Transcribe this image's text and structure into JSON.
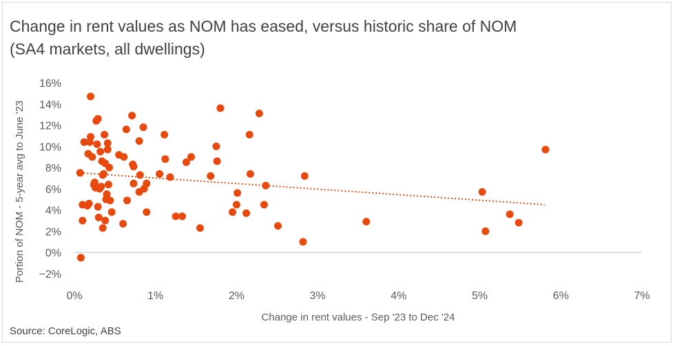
{
  "title": "Change in rent values as NOM has eased, versus historic share of NOM (SA4 markets, all dwellings)",
  "source": "Source: CoreLogic, ABS",
  "colors": {
    "points": "#e8490f",
    "trendline": "#e8490f",
    "axis": "#bfbfbf",
    "text": "#404040"
  },
  "chart_data": {
    "type": "scatter",
    "title": "Change in rent values as NOM has eased, versus historic share of NOM (SA4 markets, all dwellings)",
    "xlabel": "Change in rent values - Sep '23 to Dec '24",
    "ylabel": "Portion of NOM -  5-year avg to June '23",
    "xlim": [
      0,
      7
    ],
    "ylim": [
      -2,
      16
    ],
    "x_ticks": [
      0,
      1,
      2,
      3,
      4,
      5,
      6,
      7
    ],
    "y_ticks": [
      -2,
      0,
      2,
      4,
      6,
      8,
      10,
      12,
      14,
      16
    ],
    "x_tick_labels": [
      "0%",
      "1%",
      "2%",
      "3%",
      "4%",
      "5%",
      "6%",
      "7%"
    ],
    "y_tick_labels": [
      "−2%",
      "0%",
      "2%",
      "4%",
      "6%",
      "8%",
      "10%",
      "12%",
      "14%",
      "16%"
    ],
    "grid": false,
    "trendline": {
      "type": "linear",
      "x_range": [
        0.07,
        5.8
      ],
      "y_start": 7.5,
      "y_end": 4.5
    },
    "points": [
      [
        0.07,
        7.5
      ],
      [
        0.08,
        -0.5
      ],
      [
        0.1,
        4.5
      ],
      [
        0.1,
        3.0
      ],
      [
        0.12,
        10.4
      ],
      [
        0.16,
        4.4
      ],
      [
        0.17,
        9.3
      ],
      [
        0.18,
        4.6
      ],
      [
        0.19,
        10.4
      ],
      [
        0.2,
        14.7
      ],
      [
        0.2,
        10.9
      ],
      [
        0.22,
        9.0
      ],
      [
        0.24,
        6.4
      ],
      [
        0.25,
        6.6
      ],
      [
        0.26,
        6.1
      ],
      [
        0.27,
        12.4
      ],
      [
        0.28,
        10.2
      ],
      [
        0.29,
        12.6
      ],
      [
        0.29,
        4.3
      ],
      [
        0.3,
        3.3
      ],
      [
        0.31,
        6.0
      ],
      [
        0.32,
        9.5
      ],
      [
        0.33,
        6.2
      ],
      [
        0.34,
        8.6
      ],
      [
        0.35,
        2.3
      ],
      [
        0.35,
        7.3
      ],
      [
        0.36,
        7.4
      ],
      [
        0.37,
        11.1
      ],
      [
        0.38,
        3.0
      ],
      [
        0.38,
        8.4
      ],
      [
        0.39,
        5.0
      ],
      [
        0.4,
        5.5
      ],
      [
        0.41,
        10.3
      ],
      [
        0.41,
        9.7
      ],
      [
        0.42,
        6.4
      ],
      [
        0.43,
        8.0
      ],
      [
        0.44,
        4.9
      ],
      [
        0.46,
        3.8
      ],
      [
        0.55,
        9.2
      ],
      [
        0.6,
        2.7
      ],
      [
        0.61,
        9.0
      ],
      [
        0.64,
        11.6
      ],
      [
        0.65,
        4.9
      ],
      [
        0.71,
        12.9
      ],
      [
        0.72,
        8.3
      ],
      [
        0.73,
        8.1
      ],
      [
        0.73,
        6.5
      ],
      [
        0.8,
        10.5
      ],
      [
        0.8,
        5.7
      ],
      [
        0.81,
        7.3
      ],
      [
        0.85,
        11.8
      ],
      [
        0.86,
        6.0
      ],
      [
        0.89,
        6.5
      ],
      [
        0.89,
        3.8
      ],
      [
        1.05,
        7.4
      ],
      [
        1.11,
        11.1
      ],
      [
        1.12,
        8.8
      ],
      [
        1.18,
        7.1
      ],
      [
        1.25,
        3.4
      ],
      [
        1.33,
        3.4
      ],
      [
        1.38,
        8.5
      ],
      [
        1.44,
        9.0
      ],
      [
        1.55,
        2.3
      ],
      [
        1.68,
        7.2
      ],
      [
        1.75,
        10.0
      ],
      [
        1.76,
        8.6
      ],
      [
        1.8,
        13.6
      ],
      [
        1.95,
        3.8
      ],
      [
        2.0,
        4.5
      ],
      [
        2.01,
        5.6
      ],
      [
        2.12,
        3.7
      ],
      [
        2.16,
        11.1
      ],
      [
        2.17,
        7.4
      ],
      [
        2.28,
        13.1
      ],
      [
        2.34,
        4.5
      ],
      [
        2.36,
        6.3
      ],
      [
        2.51,
        2.5
      ],
      [
        2.82,
        1.0
      ],
      [
        2.84,
        7.2
      ],
      [
        3.6,
        2.9
      ],
      [
        5.03,
        5.7
      ],
      [
        5.07,
        2.0
      ],
      [
        5.37,
        3.6
      ],
      [
        5.48,
        2.8
      ],
      [
        5.81,
        9.7
      ]
    ]
  }
}
